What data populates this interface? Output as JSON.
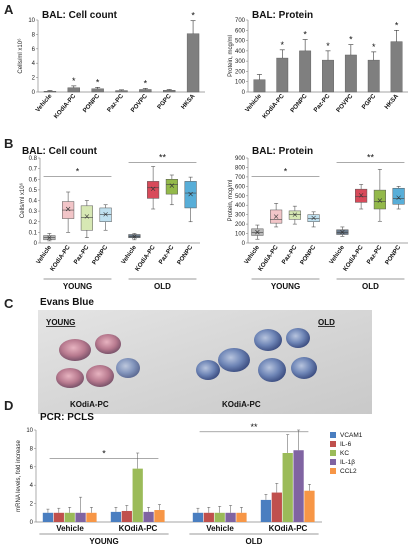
{
  "panels": {
    "A": {
      "letter": "A"
    },
    "B": {
      "letter": "B"
    },
    "C": {
      "letter": "C",
      "title": "Evans Blue",
      "left_group": "YOUNG",
      "right_group": "OLD",
      "left_caption": "KOdiA-PC",
      "right_caption": "KOdiA-PC"
    },
    "D": {
      "letter": "D",
      "title": "PCR: PCLS"
    }
  },
  "chart_data": [
    {
      "id": "A1",
      "type": "bar",
      "title": "BAL: Cell count",
      "ylabel": "Cells/ml x10⁶",
      "ylim": [
        0,
        10
      ],
      "yticks": [
        "0",
        "2",
        "4",
        "6",
        "8",
        "10"
      ],
      "categories": [
        "Vehicle",
        "KOdiA-PC",
        "PONPC",
        "Paz-PC",
        "POVPC",
        "PGPC",
        "HKSA"
      ],
      "values": [
        0.1,
        0.6,
        0.45,
        0.2,
        0.35,
        0.25,
        8.1
      ],
      "errors": [
        0.1,
        0.25,
        0.2,
        0.1,
        0.15,
        0.1,
        1.8
      ],
      "significance": [
        "",
        "*",
        "*",
        "",
        "*",
        "",
        "*"
      ]
    },
    {
      "id": "A2",
      "type": "bar",
      "title": "BAL: Protein",
      "ylabel": "Protein, mcg/ml",
      "ylim": [
        0,
        700
      ],
      "yticks": [
        "0",
        "100",
        "200",
        "300",
        "400",
        "500",
        "600",
        "700"
      ],
      "categories": [
        "Vehicle",
        "KOdiA-PC",
        "PONPC",
        "Paz-PC",
        "POVPC",
        "PGPC",
        "HKSA"
      ],
      "values": [
        120,
        330,
        400,
        310,
        360,
        310,
        490
      ],
      "errors": [
        50,
        80,
        110,
        90,
        100,
        80,
        110
      ],
      "significance": [
        "",
        "*",
        "*",
        "*",
        "*",
        "*",
        "*"
      ]
    },
    {
      "id": "B1",
      "type": "box",
      "title": "BAL: Cell count",
      "ylabel": "Cells/ml x10⁶",
      "ylim": [
        0,
        0.8
      ],
      "yticks": [
        "0",
        "0.1",
        "0.2",
        "0.3",
        "0.4",
        "0.5",
        "0.6",
        "0.7",
        "0.8"
      ],
      "groups": [
        "YOUNG",
        "OLD"
      ],
      "categories": [
        "Vehicle",
        "KOdiA-PC",
        "Paz-PC",
        "PONPC",
        "Vehicle",
        "KOdiA-PC",
        "Paz-PC",
        "PONPC"
      ],
      "boxes": [
        {
          "min": 0.02,
          "q1": 0.03,
          "median": 0.05,
          "q3": 0.07,
          "max": 0.09,
          "mean": 0.05
        },
        {
          "min": 0.1,
          "q1": 0.23,
          "median": 0.31,
          "q3": 0.39,
          "max": 0.48,
          "mean": 0.32
        },
        {
          "min": 0.05,
          "q1": 0.12,
          "median": 0.24,
          "q3": 0.35,
          "max": 0.4,
          "mean": 0.25
        },
        {
          "min": 0.12,
          "q1": 0.2,
          "median": 0.27,
          "q3": 0.33,
          "max": 0.36,
          "mean": 0.27
        },
        {
          "min": 0.03,
          "q1": 0.05,
          "median": 0.06,
          "q3": 0.08,
          "max": 0.09,
          "mean": 0.06
        },
        {
          "min": 0.32,
          "q1": 0.42,
          "median": 0.52,
          "q3": 0.58,
          "max": 0.72,
          "mean": 0.51
        },
        {
          "min": 0.36,
          "q1": 0.46,
          "median": 0.55,
          "q3": 0.6,
          "max": 0.64,
          "mean": 0.54
        },
        {
          "min": 0.2,
          "q1": 0.33,
          "median": 0.47,
          "q3": 0.58,
          "max": 0.62,
          "mean": 0.46
        }
      ],
      "colors": [
        "#b9b9b9",
        "#f2c5c8",
        "#d7e8b4",
        "#bfe0ef",
        "#6b7b8c",
        "#d84a5a",
        "#93b94a",
        "#58aed8"
      ],
      "significance": {
        "young": "*",
        "old": "**"
      }
    },
    {
      "id": "B2",
      "type": "box",
      "title": "BAL: Protein",
      "ylabel": "Protein, mcg/ml",
      "ylim": [
        0,
        900
      ],
      "yticks": [
        "0",
        "100",
        "200",
        "300",
        "400",
        "500",
        "600",
        "700",
        "800",
        "900"
      ],
      "groups": [
        "YOUNG",
        "OLD"
      ],
      "categories": [
        "Vehicle",
        "KOdiA-PC",
        "Paz-PC",
        "PONPC",
        "Vehicle",
        "KOdiA-PC",
        "Paz-PC",
        "PONPC"
      ],
      "boxes": [
        {
          "min": 40,
          "q1": 80,
          "median": 110,
          "q3": 150,
          "max": 190,
          "mean": 115
        },
        {
          "min": 170,
          "q1": 210,
          "median": 250,
          "q3": 350,
          "max": 420,
          "mean": 280
        },
        {
          "min": 200,
          "q1": 250,
          "median": 300,
          "q3": 340,
          "max": 390,
          "mean": 300
        },
        {
          "min": 170,
          "q1": 225,
          "median": 260,
          "q3": 300,
          "max": 330,
          "mean": 265
        },
        {
          "min": 70,
          "q1": 90,
          "median": 110,
          "q3": 140,
          "max": 170,
          "mean": 115
        },
        {
          "min": 360,
          "q1": 430,
          "median": 490,
          "q3": 570,
          "max": 620,
          "mean": 505
        },
        {
          "min": 230,
          "q1": 360,
          "median": 440,
          "q3": 560,
          "max": 780,
          "mean": 450
        },
        {
          "min": 360,
          "q1": 410,
          "median": 470,
          "q3": 580,
          "max": 600,
          "mean": 480
        }
      ],
      "colors": [
        "#b9b9b9",
        "#f2c5c8",
        "#d7e8b4",
        "#bfe0ef",
        "#6b7b8c",
        "#d84a5a",
        "#93b94a",
        "#58aed8"
      ],
      "significance": {
        "young": "*",
        "old": "**"
      }
    },
    {
      "id": "D",
      "type": "bar",
      "title": "PCR: PCLS",
      "ylabel": "mRNA levels, fold increase",
      "ylim": [
        0,
        10
      ],
      "yticks": [
        "0",
        "2",
        "4",
        "6",
        "8",
        "10"
      ],
      "groups": [
        "YOUNG",
        "OLD"
      ],
      "categories": [
        "Vehicle",
        "KOdiA-PC",
        "Vehicle",
        "KOdiA-PC"
      ],
      "series": [
        {
          "name": "VCAM1",
          "color": "#4a7ec0",
          "values": [
            1.0,
            1.1,
            1.0,
            2.4
          ],
          "errors": [
            0.4,
            0.5,
            0.5,
            0.6
          ]
        },
        {
          "name": "IL-6",
          "color": "#c0504d",
          "values": [
            1.0,
            1.2,
            1.0,
            3.2
          ],
          "errors": [
            0.5,
            0.6,
            0.6,
            1.0
          ]
        },
        {
          "name": "KC",
          "color": "#9bbb59",
          "values": [
            1.0,
            5.8,
            1.0,
            7.5
          ],
          "errors": [
            0.6,
            1.7,
            0.7,
            2.0
          ]
        },
        {
          "name": "IL-1β",
          "color": "#8064a2",
          "values": [
            1.0,
            1.1,
            1.0,
            7.8
          ],
          "errors": [
            1.7,
            0.5,
            0.8,
            2.2
          ]
        },
        {
          "name": "CCL2",
          "color": "#f79646",
          "values": [
            1.0,
            1.3,
            1.0,
            3.4
          ],
          "errors": [
            0.6,
            0.6,
            0.6,
            0.7
          ]
        }
      ],
      "significance": {
        "young": "*",
        "old": "**"
      }
    }
  ]
}
